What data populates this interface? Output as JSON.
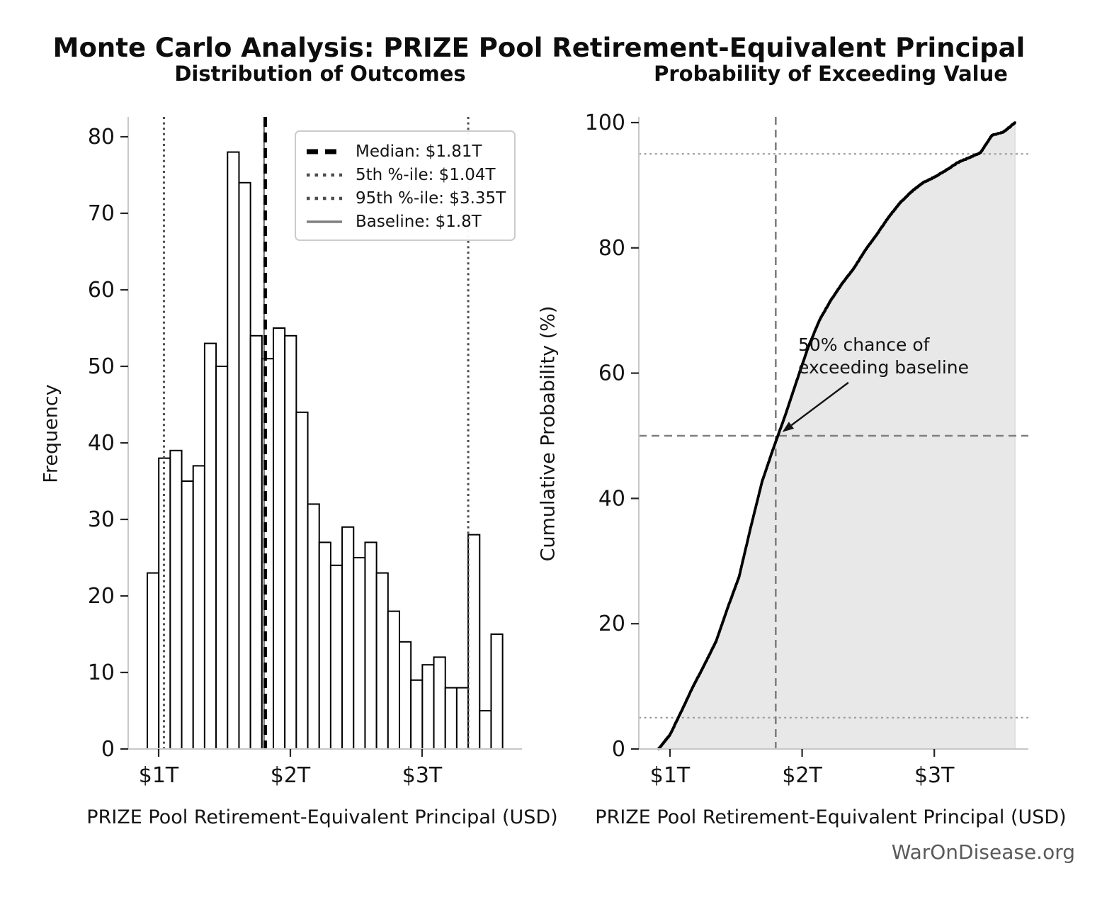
{
  "figure": {
    "title": "Monte Carlo Analysis: PRIZE Pool Retirement-Equivalent Principal",
    "watermark": "WarOnDisease.org"
  },
  "chart_data": [
    {
      "id": "distribution-histogram",
      "type": "bar",
      "title": "Distribution of Outcomes",
      "xlabel": "PRIZE Pool Retirement-Equivalent Principal (USD)",
      "ylabel": "Frequency",
      "x_unit": "trillions USD",
      "bin_start": 0.914,
      "bin_width": 0.087,
      "counts": [
        23,
        38,
        39,
        35,
        37,
        53,
        50,
        78,
        74,
        54,
        51,
        55,
        54,
        44,
        32,
        27,
        24,
        29,
        25,
        27,
        23,
        18,
        14,
        9,
        11,
        12,
        8,
        8,
        28,
        5,
        15
      ],
      "bar_fill": "#ffffff",
      "bar_edge": "#000000",
      "xlim": [
        0.77,
        3.76
      ],
      "ylim": [
        0,
        82
      ],
      "grid": false,
      "xticks": {
        "values": [
          1,
          2,
          3
        ],
        "labels": [
          "$1T",
          "$2T",
          "$3T"
        ]
      },
      "yticks": {
        "values": [
          0,
          10,
          20,
          30,
          40,
          50,
          60,
          70,
          80
        ],
        "labels": [
          "0",
          "10",
          "20",
          "30",
          "40",
          "50",
          "60",
          "70",
          "80"
        ]
      },
      "reference_lines": [
        {
          "name": "median",
          "value": 1.81,
          "style": "dashed",
          "color": "#000000"
        },
        {
          "name": "p5",
          "value": 1.04,
          "style": "dotted",
          "color": "#4d4d4d"
        },
        {
          "name": "p95",
          "value": 3.35,
          "style": "dotted",
          "color": "#4d4d4d"
        },
        {
          "name": "baseline",
          "value": 1.8,
          "style": "solid",
          "color": "#808080"
        }
      ],
      "legend": {
        "position": "upper right",
        "entries": [
          {
            "label": "Median: $1.81T",
            "style": "dashed",
            "color": "#000000"
          },
          {
            "label": "5th %-ile: $1.04T",
            "style": "dotted",
            "color": "#4d4d4d"
          },
          {
            "label": "95th %-ile: $3.35T",
            "style": "dotted",
            "color": "#4d4d4d"
          },
          {
            "label": "Baseline: $1.8T",
            "style": "solid",
            "color": "#808080"
          }
        ]
      }
    },
    {
      "id": "cumulative-probability",
      "type": "line",
      "title": "Probability of Exceeding Value",
      "xlabel": "PRIZE Pool Retirement-Equivalent Principal (USD)",
      "ylabel": "Cumulative Probability (%)",
      "x_unit": "trillions USD",
      "x": [
        0.914,
        1.001,
        1.088,
        1.175,
        1.262,
        1.349,
        1.436,
        1.523,
        1.61,
        1.697,
        1.784,
        1.871,
        1.958,
        2.045,
        2.132,
        2.219,
        2.306,
        2.393,
        2.48,
        2.567,
        2.654,
        2.741,
        2.828,
        2.915,
        3.002,
        3.089,
        3.176,
        3.263,
        3.35,
        3.437,
        3.524,
        3.611
      ],
      "y": [
        0.0,
        2.3,
        6.1,
        10.0,
        13.5,
        17.2,
        22.5,
        27.5,
        35.3,
        42.7,
        48.1,
        53.2,
        58.7,
        64.1,
        68.5,
        71.7,
        74.4,
        76.8,
        79.7,
        82.2,
        84.9,
        87.2,
        89.0,
        90.4,
        91.3,
        92.4,
        93.6,
        94.4,
        95.2,
        98.0,
        98.5,
        100.0
      ],
      "line_color": "#000000",
      "fill_color": "#e8e8e8",
      "xlim": [
        0.76,
        3.71
      ],
      "ylim": [
        0,
        100
      ],
      "grid": false,
      "xticks": {
        "values": [
          1,
          2,
          3
        ],
        "labels": [
          "$1T",
          "$2T",
          "$3T"
        ]
      },
      "yticks": {
        "values": [
          0,
          20,
          40,
          60,
          80,
          100
        ],
        "labels": [
          "0",
          "20",
          "40",
          "60",
          "80",
          "100"
        ]
      },
      "hlines": [
        {
          "value": 50,
          "style": "dashed",
          "color": "#7f7f7f"
        },
        {
          "value": 95,
          "style": "dotted",
          "color": "#9c9c9c"
        },
        {
          "value": 5,
          "style": "dotted",
          "color": "#9c9c9c"
        }
      ],
      "vlines": [
        {
          "value": 1.8,
          "style": "dashed",
          "color": "#7f7f7f"
        }
      ],
      "annotation": {
        "text_lines": [
          "50% chance of",
          "exceeding baseline"
        ],
        "arrow_from": [
          2.35,
          58.5
        ],
        "arrow_to": [
          1.85,
          50.6
        ]
      }
    }
  ]
}
